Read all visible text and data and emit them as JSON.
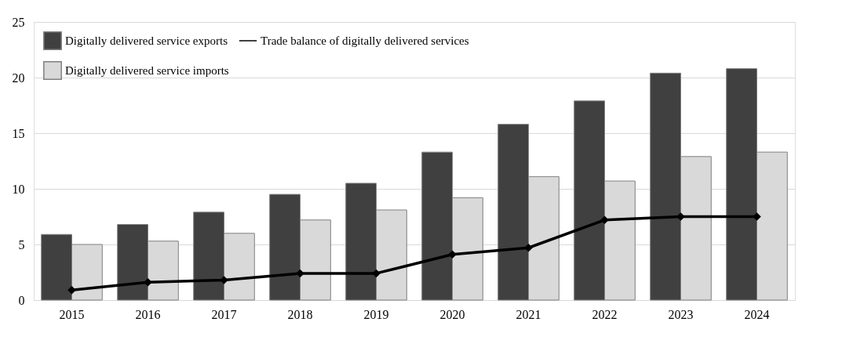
{
  "chart_data": {
    "type": "bar",
    "categories": [
      "2015",
      "2016",
      "2017",
      "2018",
      "2019",
      "2020",
      "2021",
      "2022",
      "2023",
      "2024"
    ],
    "series": [
      {
        "name": "Digitally delivered service exports",
        "color": "#404040",
        "values": [
          5.9,
          6.8,
          7.9,
          9.5,
          10.5,
          13.3,
          15.8,
          17.9,
          20.4,
          20.8
        ]
      },
      {
        "name": "Digitally delivered service imports",
        "color": "#d9d9d9",
        "values": [
          5.0,
          5.3,
          6.0,
          7.2,
          8.1,
          9.2,
          11.1,
          10.7,
          12.9,
          13.3
        ]
      },
      {
        "name": "Trade balance of digitally delivered services",
        "type": "line",
        "color": "#000000",
        "marker": "diamond",
        "values": [
          0.9,
          1.6,
          1.8,
          2.4,
          2.4,
          4.1,
          4.7,
          7.2,
          7.5,
          7.5
        ]
      }
    ],
    "ylim": [
      0,
      25
    ],
    "yticks": [
      0,
      5,
      10,
      15,
      20,
      25
    ],
    "grid": "y",
    "legend": "top left"
  }
}
